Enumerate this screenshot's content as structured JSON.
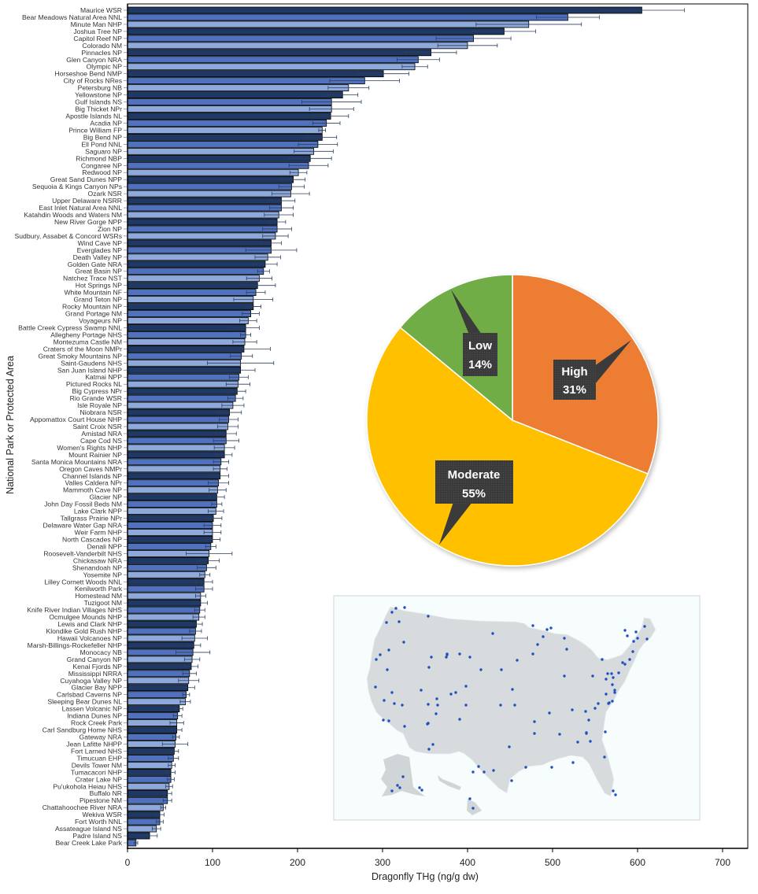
{
  "chart_data": [
    {
      "type": "bar",
      "orientation": "horizontal",
      "xlabel": "Dragonfly THg (ng/g dw)",
      "ylabel": "National Park or Protected Area",
      "xlim": [
        0,
        730
      ],
      "xticks": [
        "0",
        "100",
        "200",
        "300",
        "400",
        "500",
        "600",
        "700"
      ],
      "colors": [
        "#203864",
        "#4f71be",
        "#8ea9db"
      ],
      "categories": [
        "Maurice WSR",
        "Bear Meadows Natural Area NNL",
        "Minute Man NHP",
        "Joshua Tree NP",
        "Capitol Reef NP",
        "Colorado NM",
        "Pinnacles NP",
        "Glen Canyon NRA",
        "Olympic NP",
        "Horseshoe Bend NMP",
        "City of Rocks NRes",
        "Petersburg NB",
        "Yellowstone NP",
        "Gulf Islands NS",
        "Big Thicket NPr",
        "Apostle Islands NL",
        "Acadia NP",
        "Prince William FP",
        "Big Bend NP",
        "Ell Pond NNL",
        "Saguaro NP",
        "Richmond NBP",
        "Congaree NP",
        "Redwood NP",
        "Great Sand Dunes NPP",
        "Sequoia & Kings Canyon NPs",
        "Ozark NSR",
        "Upper Delaware NSRR",
        "East Inlet Natural Area NNL",
        "Katahdin Woods and Waters NM",
        "New River Gorge NPP",
        "Zion NP",
        "Sudbury, Assabet & Concord WSRs",
        "Wind Cave NP",
        "Everglades NP",
        "Death Valley NP",
        "Golden Gate NRA",
        "Great Basin NP",
        "Natchez Trace NST",
        "Hot Springs NP",
        "White Mountain NF",
        "Grand Teton NP",
        "Rocky Mountain NP",
        "Grand Portage NM",
        "Voyageurs NP",
        "Battle Creek Cypress Swamp NNL",
        "Allegheny Portage NHS",
        "Montezuma Castle NM",
        "Craters of the Moon NMPr",
        "Great Smoky Mountains NP",
        "Saint-Gaudens NHS",
        "San Juan Island NHP",
        "Katmai NPP",
        "Pictured Rocks NL",
        "Big Cypress NPr",
        "Rio Grande WSR",
        "Isle Royale NP",
        "Niobrara NSR",
        "Appomattox Court House NHP",
        "Saint Croix NSR",
        "Amistad NRA",
        "Cape Cod NS",
        "Women's Rights NHP",
        "Mount Rainier NP",
        "Santa Monica Mountains NRA",
        "Oregon Caves NMPr",
        "Channel Islands NP",
        "Valles Caldera NPr",
        "Mammoth Cave NP",
        "Glacier NP",
        "John Day Fossil Beds NM",
        "Lake Clark NPP",
        "Tallgrass Prairie NPr",
        "Delaware Water Gap NRA",
        "Weir Farm NHP",
        "North Cascades NP",
        "Denali NPP",
        "Roosevelt-Vanderbilt NHS",
        "Chickasaw NRA",
        "Shenandoah NP",
        "Yosemite NP",
        "Lilley Cornett Woods NNL",
        "Kenilworth Park",
        "Homestead NM",
        "Tuzigoot NM",
        "Knife River Indian Villages NHS",
        "Ocmulgee Mounds NHP",
        "Lewis and Clark NHP",
        "Klondike Gold Rush NHP",
        "Hawaii Volcanoes NP",
        "Marsh-Billings-Rockefeller NHP",
        "Monocacy NB",
        "Grand Canyon NP",
        "Kenai Fjords NP",
        "Mississippi NRRA",
        "Cuyahoga Valley NP",
        "Glacier Bay NPP",
        "Carlsbad Caverns NP",
        "Sleeping Bear Dunes NL",
        "Lassen Volcanic NP",
        "Indiana Dunes NP",
        "Rock Creek Park",
        "Carl Sandburg Home NHS",
        "Gateway NRA",
        "Jean Lafitte NHPP",
        "Fort Larned NHS",
        "Timucuan EHP",
        "Devils Tower NM",
        "Tumacacori NHP",
        "Crater Lake NP",
        "Pu'ukohola Heiau NHS",
        "Buffalo NR",
        "Pipestone NM",
        "Chattahoochee River NRA",
        "Wekiva WSR",
        "Fort Worth NNL",
        "Assateague Island NS",
        "Padre Island NS",
        "Bear Creek Lake Park"
      ],
      "values": [
        605,
        518,
        472,
        443,
        407,
        400,
        357,
        342,
        338,
        301,
        279,
        260,
        253,
        240,
        240,
        239,
        234,
        229,
        229,
        224,
        219,
        215,
        213,
        201,
        195,
        193,
        192,
        181,
        181,
        178,
        176,
        176,
        174,
        169,
        169,
        165,
        162,
        160,
        155,
        153,
        151,
        148,
        148,
        145,
        142,
        139,
        139,
        138,
        137,
        134,
        133,
        133,
        131,
        130,
        129,
        127,
        124,
        120,
        119,
        118,
        116,
        116,
        114,
        114,
        110,
        109,
        109,
        107,
        106,
        105,
        105,
        104,
        101,
        100,
        100,
        100,
        98,
        96,
        95,
        93,
        91,
        90,
        90,
        86,
        86,
        85,
        84,
        81,
        80,
        79,
        78,
        77,
        76,
        75,
        73,
        72,
        71,
        69,
        68,
        61,
        59,
        58,
        58,
        57,
        56,
        55,
        54,
        52,
        51,
        51,
        49,
        47,
        47,
        42,
        38,
        38,
        34,
        26,
        10
      ],
      "errors": [
        50,
        37,
        62,
        37,
        44,
        35,
        30,
        25,
        15,
        30,
        41,
        24,
        18,
        35,
        26,
        21,
        16,
        4,
        17,
        23,
        23,
        25,
        23,
        10,
        14,
        15,
        22,
        16,
        14,
        17,
        10,
        17,
        15,
        12,
        30,
        15,
        14,
        7,
        15,
        21,
        11,
        23,
        9,
        10,
        10,
        16,
        6,
        14,
        31,
        13,
        39,
        17,
        11,
        14,
        10,
        9,
        13,
        14,
        11,
        12,
        12,
        15,
        12,
        9,
        9,
        8,
        10,
        12,
        10,
        9,
        6,
        9,
        10,
        10,
        10,
        9,
        6,
        27,
        13,
        11,
        6,
        10,
        10,
        6,
        8,
        6,
        7,
        7,
        7,
        15,
        8,
        20,
        9,
        8,
        8,
        12,
        8,
        4,
        6,
        4,
        5,
        8,
        6,
        4,
        15,
        5,
        6,
        4,
        5,
        4,
        4,
        5,
        5,
        3,
        5,
        4,
        5,
        9,
        2
      ]
    },
    {
      "type": "pie",
      "categories": [
        "High",
        "Moderate",
        "Low"
      ],
      "values": [
        31,
        55,
        14
      ],
      "labels": [
        "31%",
        "55%",
        "14%"
      ],
      "colors": [
        "#ed7d31",
        "#ffc000",
        "#70ad47"
      ]
    }
  ]
}
